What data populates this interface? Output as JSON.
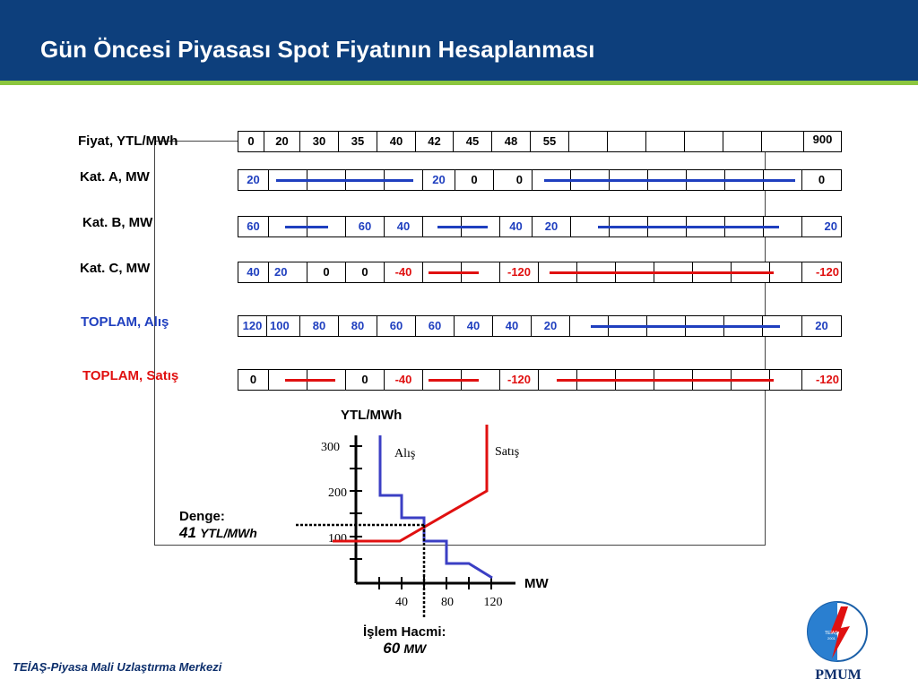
{
  "header": {
    "title": "Gün Öncesi Piyasası Spot Fiyatının Hesaplanması",
    "bg_color": "#0d3f7c",
    "accent_color": "#8cc63f"
  },
  "table": {
    "price_label": "Fiyat, YTL/MWh",
    "prices": [
      "0",
      "20",
      "30",
      "35",
      "40",
      "42",
      "45",
      "48",
      "55",
      "",
      "",
      "",
      "",
      "",
      "",
      "900"
    ],
    "rows": [
      {
        "label": "Kat. A, MW",
        "values": [
          "20",
          "",
          "",
          "",
          "",
          "20",
          "0",
          "",
          "0",
          "",
          "",
          "",
          "",
          "",
          "",
          "0"
        ]
      },
      {
        "label": "Kat. B, MW",
        "values": [
          "60",
          "",
          "",
          "60",
          "40",
          "",
          "",
          "40",
          "20",
          "",
          "",
          "",
          "",
          "",
          "",
          "20"
        ]
      },
      {
        "label": "Kat. C, MW",
        "values": [
          "40",
          "20",
          "0",
          "0",
          "-40",
          "",
          "",
          "-120",
          "",
          "",
          "",
          "",
          "",
          "",
          "",
          "-120"
        ]
      },
      {
        "label": "TOPLAM, Alış",
        "values": [
          "120",
          "100",
          "80",
          "80",
          "60",
          "60",
          "40",
          "40",
          "20",
          "",
          "",
          "",
          "",
          "",
          "",
          "20"
        ]
      },
      {
        "label": "TOPLAM, Satış",
        "values": [
          "0",
          "",
          "",
          "0",
          "-40",
          "",
          "",
          "-120",
          "",
          "",
          "",
          "",
          "",
          "",
          "",
          "-120"
        ]
      }
    ]
  },
  "graph": {
    "y_axis_label": "YTL/MWh",
    "x_axis_label": "MW",
    "y_ticks": [
      "300",
      "200",
      "100"
    ],
    "x_ticks": [
      "40",
      "80",
      "120"
    ],
    "buy_curve_label": "Alış",
    "sell_curve_label": "Satış",
    "buy_color": "#3b3fc4",
    "sell_color": "#e01010"
  },
  "equilibrium": {
    "price_label": "Denge:",
    "price_value": "41",
    "price_unit": "YTL/MWh",
    "volume_label": "İşlem Hacmi:",
    "volume_value": "60",
    "volume_unit": "MW"
  },
  "footer": {
    "text": "TEİAŞ-Piyasa Mali Uzlaştırma Merkezi"
  },
  "logo": {
    "name": "PMUM",
    "inner_text": "TEİAŞ",
    "inner_year": "2001"
  }
}
